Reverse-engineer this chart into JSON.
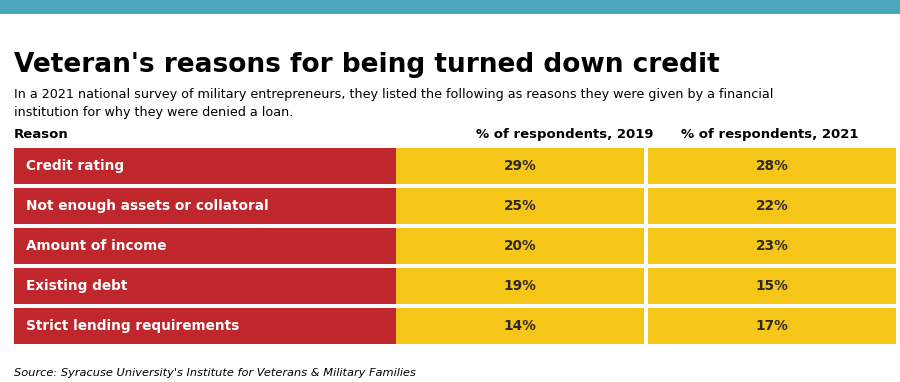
{
  "title": "Veteran's reasons for being turned down credit",
  "subtitle": "In a 2021 national survey of military entrepreneurs, they listed the following as reasons they were given by a financial\ninstitution for why they were denied a loan.",
  "source": "Source: Syracuse University's Institute for Veterans & Military Families",
  "col_header_reason": "Reason",
  "col_header_2019": "% of respondents, 2019",
  "col_header_2021": "% of respondents, 2021",
  "rows": [
    {
      "reason": "Credit rating",
      "pct2019": "29%",
      "pct2021": "28%"
    },
    {
      "reason": "Not enough assets or collatoral",
      "pct2019": "25%",
      "pct2021": "22%"
    },
    {
      "reason": "Amount of income",
      "pct2019": "20%",
      "pct2021": "23%"
    },
    {
      "reason": "Existing debt",
      "pct2019": "19%",
      "pct2021": "15%"
    },
    {
      "reason": "Strict lending requirements",
      "pct2019": "14%",
      "pct2021": "17%"
    }
  ],
  "top_bar_color": "#4aa8ba",
  "red_color": "#c0272d",
  "gold_color": "#f5c518",
  "white_bg": "#ffffff",
  "header_text_color": "#000000",
  "row_text_white": "#ffffff",
  "row_text_dark": "#2a2a2a",
  "title_fontsize": 19,
  "subtitle_fontsize": 9.2,
  "header_fontsize": 9.5,
  "row_fontsize": 9.8,
  "source_fontsize": 8.2,
  "fig_width": 9.0,
  "fig_height": 3.82
}
